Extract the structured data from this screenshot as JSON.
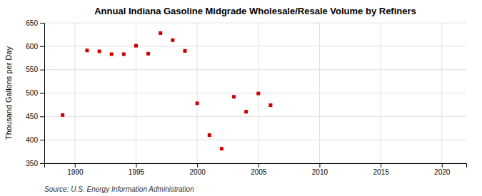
{
  "chart_data": {
    "type": "scatter",
    "title": "Annual Indiana Gasoline Midgrade Wholesale/Resale Volume by Refiners",
    "ylabel": "Thousand Gallons per Day",
    "source": "Source: U.S. Energy Information Administration",
    "x": [
      1989,
      1991,
      1992,
      1993,
      1994,
      1995,
      1996,
      1997,
      1998,
      1999,
      2000,
      2001,
      2002,
      2003,
      2004,
      2005,
      2006
    ],
    "values": [
      453,
      591,
      589,
      583,
      583,
      601,
      584,
      628,
      613,
      590,
      478,
      410,
      381,
      492,
      460,
      499,
      474
    ],
    "color": "#cc0000",
    "marker": "square",
    "xlim": [
      1987.5,
      2022
    ],
    "ylim": [
      350,
      650
    ],
    "xticks": [
      1990,
      1995,
      2000,
      2005,
      2010,
      2015,
      2020
    ],
    "yticks": [
      350,
      400,
      450,
      500,
      550,
      600,
      650
    ],
    "grid": true
  }
}
